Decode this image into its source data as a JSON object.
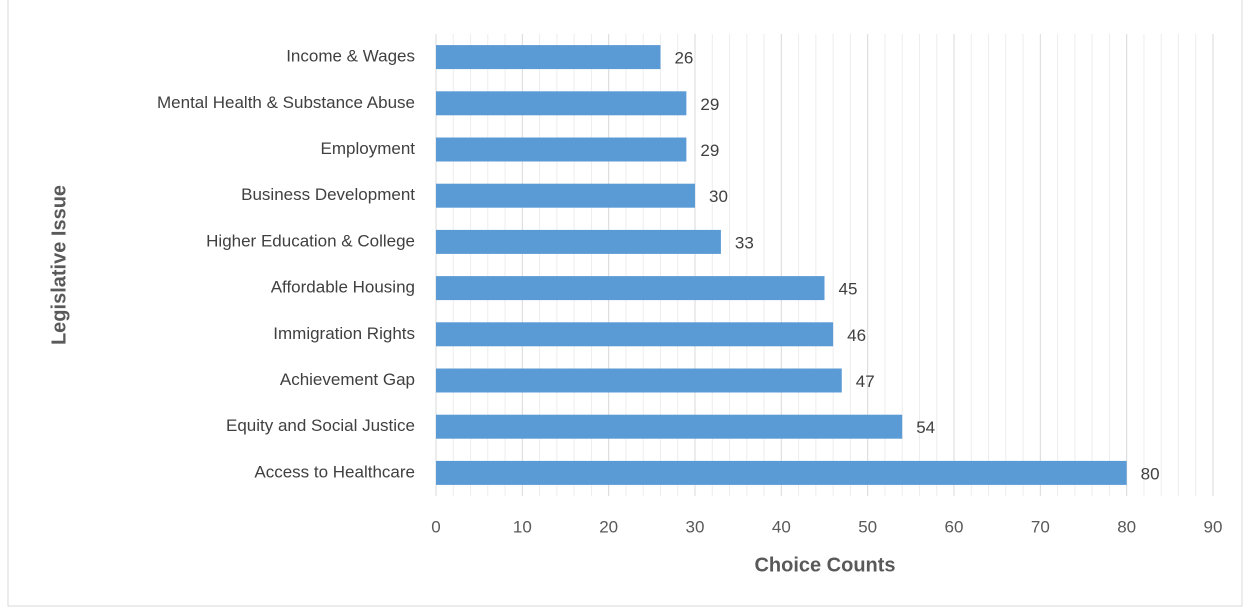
{
  "chart_data": {
    "type": "bar",
    "orientation": "horizontal",
    "xlabel": "Choice Counts",
    "ylabel": "Legislative Issue",
    "categories": [
      "Income & Wages",
      "Mental Health & Substance Abuse",
      "Employment",
      "Business Development",
      "Higher Education & College",
      "Affordable Housing",
      "Immigration Rights",
      "Achievement Gap",
      "Equity and Social Justice",
      "Access to Healthcare"
    ],
    "values": [
      26,
      29,
      29,
      30,
      33,
      45,
      46,
      47,
      54,
      80
    ],
    "color": "#5b9bd5",
    "xlim": [
      0,
      90
    ],
    "xticks": [
      0,
      10,
      20,
      30,
      40,
      50,
      60,
      70,
      80,
      90
    ],
    "grid": true,
    "minor_grid": true
  }
}
